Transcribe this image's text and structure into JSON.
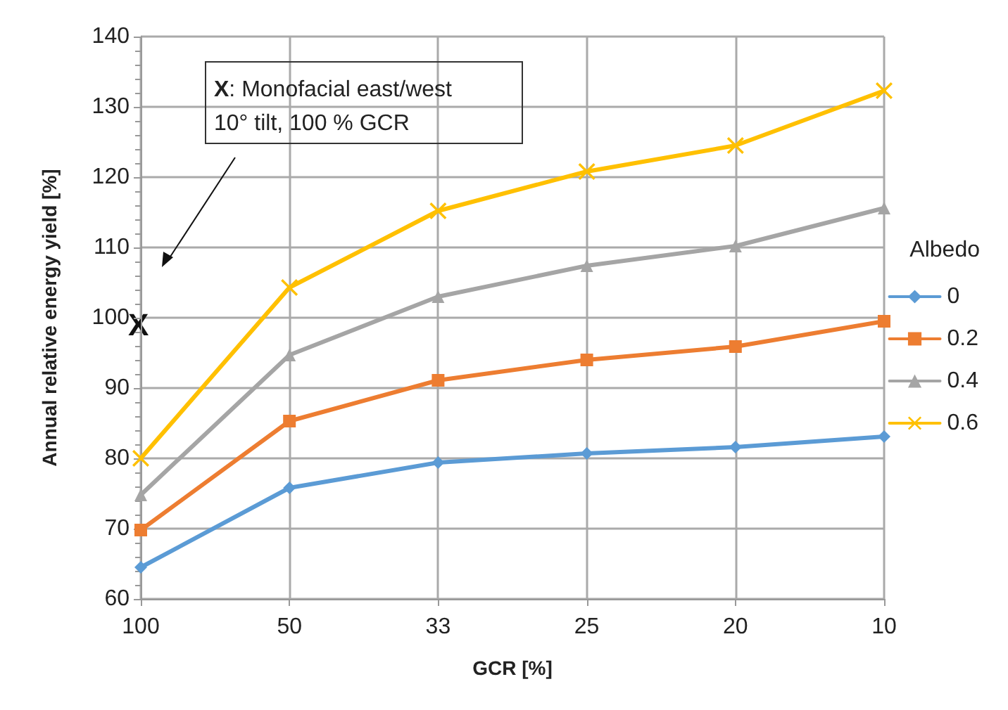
{
  "chart_data": {
    "type": "line",
    "xlabel": "GCR [%]",
    "ylabel": "Annual relative energy yield [%]",
    "legend_title": "Albedo",
    "categories": [
      "100",
      "50",
      "33",
      "25",
      "20",
      "10"
    ],
    "series": [
      {
        "name": "0",
        "color": "#5b9bd5",
        "marker": "diamond",
        "values": [
          64.5,
          75.8,
          79.4,
          80.7,
          81.6,
          83.1
        ]
      },
      {
        "name": "0.2",
        "color": "#ed7d31",
        "marker": "square",
        "values": [
          69.8,
          85.3,
          91.1,
          94.0,
          95.9,
          99.5
        ]
      },
      {
        "name": "0.4",
        "color": "#a5a5a5",
        "marker": "triangle",
        "values": [
          74.8,
          94.7,
          103.0,
          107.4,
          110.2,
          115.6
        ]
      },
      {
        "name": "0.6",
        "color": "#ffc000",
        "marker": "cross",
        "values": [
          80.0,
          104.3,
          115.2,
          120.8,
          124.5,
          132.3
        ]
      }
    ],
    "ylim": [
      60,
      140
    ],
    "yticks": [
      60,
      70,
      80,
      90,
      100,
      110,
      120,
      130,
      140
    ],
    "grid": true,
    "legend": "right",
    "annotations": [
      "X",
      "X: Monofacial east/west\n10° tilt, 100 % GCR"
    ]
  }
}
